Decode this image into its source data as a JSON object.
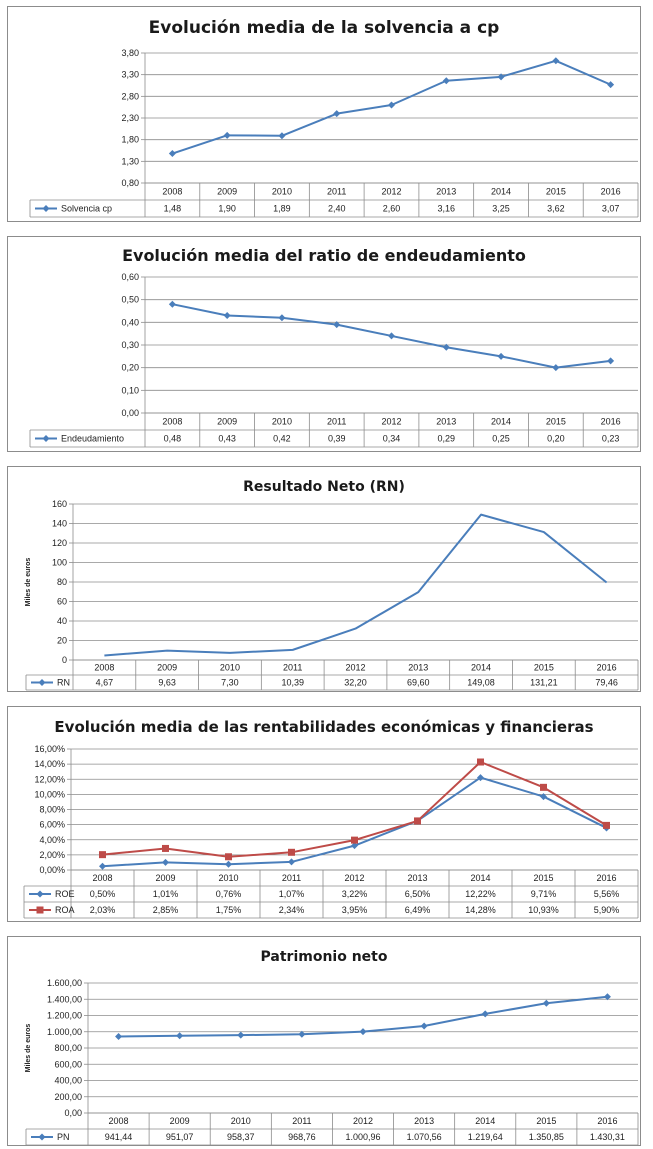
{
  "chart_data": [
    {
      "type": "line",
      "title": "Evolución media de la solvencia a cp",
      "ylabel": "",
      "categories": [
        "2008",
        "2009",
        "2010",
        "2011",
        "2012",
        "2013",
        "2014",
        "2015",
        "2016"
      ],
      "ylim": [
        0.8,
        3.8
      ],
      "yticks": [
        "0,80",
        "1,30",
        "1,80",
        "2,30",
        "2,80",
        "3,30",
        "3,80"
      ],
      "grid": true,
      "legend": "data-table",
      "series": [
        {
          "name": "Solvencia cp",
          "color": "#4a7ebb",
          "marker": "diamond",
          "values": [
            1.48,
            1.9,
            1.89,
            2.4,
            2.6,
            3.16,
            3.25,
            3.62,
            3.07
          ],
          "labels": [
            "1,48",
            "1,90",
            "1,89",
            "2,40",
            "2,60",
            "3,16",
            "3,25",
            "3,62",
            "3,07"
          ]
        }
      ]
    },
    {
      "type": "line",
      "title": "Evolución media del ratio de endeudamiento",
      "ylabel": "",
      "categories": [
        "2008",
        "2009",
        "2010",
        "2011",
        "2012",
        "2013",
        "2014",
        "2015",
        "2016"
      ],
      "ylim": [
        0,
        0.6
      ],
      "yticks": [
        "0,00",
        "0,10",
        "0,20",
        "0,30",
        "0,40",
        "0,50",
        "0,60"
      ],
      "grid": true,
      "legend": "data-table",
      "series": [
        {
          "name": "Endeudamiento",
          "color": "#4a7ebb",
          "marker": "diamond",
          "values": [
            0.48,
            0.43,
            0.42,
            0.39,
            0.34,
            0.29,
            0.25,
            0.2,
            0.23
          ],
          "labels": [
            "0,48",
            "0,43",
            "0,42",
            "0,39",
            "0,34",
            "0,29",
            "0,25",
            "0,20",
            "0,23"
          ]
        }
      ]
    },
    {
      "type": "line",
      "title": "Resultado Neto (RN)",
      "ylabel": "Miles de euros",
      "categories": [
        "2008",
        "2009",
        "2010",
        "2011",
        "2012",
        "2013",
        "2014",
        "2015",
        "2016"
      ],
      "ylim": [
        0,
        160
      ],
      "yticks": [
        "0",
        "20",
        "40",
        "60",
        "80",
        "100",
        "120",
        "140",
        "160"
      ],
      "grid": true,
      "legend": "data-table",
      "series": [
        {
          "name": "RN",
          "color": "#4a7ebb",
          "marker": "none",
          "values": [
            4.67,
            9.63,
            7.3,
            10.39,
            32.2,
            69.6,
            149.08,
            131.21,
            79.46
          ],
          "labels": [
            "4,67",
            "9,63",
            "7,30",
            "10,39",
            "32,20",
            "69,60",
            "149,08",
            "131,21",
            "79,46"
          ]
        }
      ]
    },
    {
      "type": "line",
      "title": "Evolución media de las rentabilidades económicas y financieras",
      "ylabel": "",
      "categories": [
        "2008",
        "2009",
        "2010",
        "2011",
        "2012",
        "2013",
        "2014",
        "2015",
        "2016"
      ],
      "ylim": [
        0,
        16
      ],
      "yticks": [
        "0,00%",
        "2,00%",
        "4,00%",
        "6,00%",
        "8,00%",
        "10,00%",
        "12,00%",
        "14,00%",
        "16,00%"
      ],
      "grid": true,
      "legend": "data-table",
      "series": [
        {
          "name": "ROE",
          "color": "#4a7ebb",
          "marker": "diamond",
          "values": [
            0.5,
            1.01,
            0.76,
            1.07,
            3.22,
            6.5,
            12.22,
            9.71,
            5.56
          ],
          "labels": [
            "0,50%",
            "1,01%",
            "0,76%",
            "1,07%",
            "3,22%",
            "6,50%",
            "12,22%",
            "9,71%",
            "5,56%"
          ]
        },
        {
          "name": "ROA",
          "color": "#be4b48",
          "marker": "square",
          "values": [
            2.03,
            2.85,
            1.75,
            2.34,
            3.95,
            6.49,
            14.28,
            10.93,
            5.9
          ],
          "labels": [
            "2,03%",
            "2,85%",
            "1,75%",
            "2,34%",
            "3,95%",
            "6,49%",
            "14,28%",
            "10,93%",
            "5,90%"
          ]
        }
      ]
    },
    {
      "type": "line",
      "title": "Patrimonio neto",
      "ylabel": "Miles de euros",
      "categories": [
        "2008",
        "2009",
        "2010",
        "2011",
        "2012",
        "2013",
        "2014",
        "2015",
        "2016"
      ],
      "ylim": [
        0,
        1600
      ],
      "yticks": [
        "0,00",
        "200,00",
        "400,00",
        "600,00",
        "800,00",
        "1.000,00",
        "1.200,00",
        "1.400,00",
        "1.600,00"
      ],
      "grid": true,
      "legend": "data-table",
      "series": [
        {
          "name": "PN",
          "color": "#4a7ebb",
          "marker": "diamond",
          "values": [
            941.44,
            951.07,
            958.37,
            968.76,
            1000.96,
            1070.56,
            1219.64,
            1350.85,
            1430.31
          ],
          "labels": [
            "941,44",
            "951,07",
            "958,37",
            "968,76",
            "1.000,96",
            "1.070,56",
            "1.219,64",
            "1.350,85",
            "1.430,31"
          ]
        }
      ]
    }
  ]
}
